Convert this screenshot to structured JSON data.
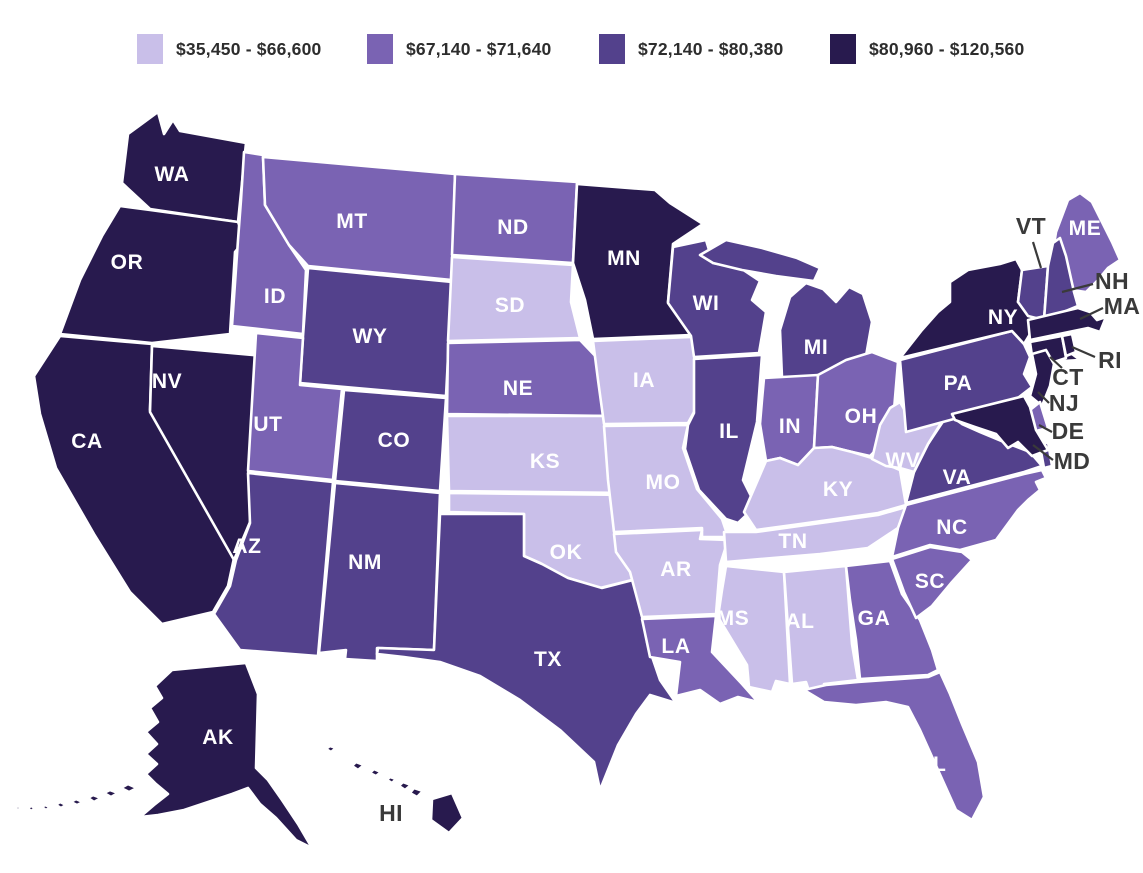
{
  "legend": {
    "items": [
      {
        "label": "$35,450 - $66,600",
        "color": "#c9bfe9"
      },
      {
        "label": "$67,140 - $71,640",
        "color": "#7a63b3"
      },
      {
        "label": "$72,140 - $80,380",
        "color": "#53418c"
      },
      {
        "label": "$80,960 - $120,560",
        "color": "#281a4e"
      }
    ]
  },
  "map": {
    "on_state_label_color": "#ffffff",
    "callout_label_color": "#3a3a3a",
    "states": [
      {
        "abbr": "WA",
        "category": 3,
        "range": "$80,960 - $120,560"
      },
      {
        "abbr": "OR",
        "category": 3,
        "range": "$80,960 - $120,560"
      },
      {
        "abbr": "CA",
        "category": 3,
        "range": "$80,960 - $120,560"
      },
      {
        "abbr": "NV",
        "category": 3,
        "range": "$80,960 - $120,560"
      },
      {
        "abbr": "ID",
        "category": 1,
        "range": "$67,140 - $71,640"
      },
      {
        "abbr": "MT",
        "category": 1,
        "range": "$67,140 - $71,640"
      },
      {
        "abbr": "WY",
        "category": 2,
        "range": "$72,140 - $80,380"
      },
      {
        "abbr": "UT",
        "category": 1,
        "range": "$67,140 - $71,640"
      },
      {
        "abbr": "CO",
        "category": 2,
        "range": "$72,140 - $80,380"
      },
      {
        "abbr": "AZ",
        "category": 2,
        "range": "$72,140 - $80,380"
      },
      {
        "abbr": "NM",
        "category": 2,
        "range": "$72,140 - $80,380"
      },
      {
        "abbr": "ND",
        "category": 1,
        "range": "$67,140 - $71,640"
      },
      {
        "abbr": "SD",
        "category": 0,
        "range": "$35,450 - $66,600"
      },
      {
        "abbr": "NE",
        "category": 1,
        "range": "$67,140 - $71,640"
      },
      {
        "abbr": "KS",
        "category": 0,
        "range": "$35,450 - $66,600"
      },
      {
        "abbr": "OK",
        "category": 0,
        "range": "$35,450 - $66,600"
      },
      {
        "abbr": "TX",
        "category": 2,
        "range": "$72,140 - $80,380"
      },
      {
        "abbr": "MN",
        "category": 3,
        "range": "$80,960 - $120,560"
      },
      {
        "abbr": "IA",
        "category": 0,
        "range": "$35,450 - $66,600"
      },
      {
        "abbr": "MO",
        "category": 0,
        "range": "$35,450 - $66,600"
      },
      {
        "abbr": "AR",
        "category": 0,
        "range": "$35,450 - $66,600"
      },
      {
        "abbr": "LA",
        "category": 1,
        "range": "$67,140 - $71,640"
      },
      {
        "abbr": "WI",
        "category": 2,
        "range": "$72,140 - $80,380"
      },
      {
        "abbr": "IL",
        "category": 2,
        "range": "$72,140 - $80,380"
      },
      {
        "abbr": "MI",
        "category": 2,
        "range": "$72,140 - $80,380"
      },
      {
        "abbr": "IN",
        "category": 1,
        "range": "$67,140 - $71,640"
      },
      {
        "abbr": "OH",
        "category": 1,
        "range": "$67,140 - $71,640"
      },
      {
        "abbr": "KY",
        "category": 0,
        "range": "$35,450 - $66,600"
      },
      {
        "abbr": "TN",
        "category": 0,
        "range": "$35,450 - $66,600"
      },
      {
        "abbr": "MS",
        "category": 0,
        "range": "$35,450 - $66,600"
      },
      {
        "abbr": "AL",
        "category": 0,
        "range": "$35,450 - $66,600"
      },
      {
        "abbr": "GA",
        "category": 1,
        "range": "$67,140 - $71,640"
      },
      {
        "abbr": "SC",
        "category": 1,
        "range": "$67,140 - $71,640"
      },
      {
        "abbr": "NC",
        "category": 1,
        "range": "$67,140 - $71,640"
      },
      {
        "abbr": "VA",
        "category": 2,
        "range": "$72,140 - $80,380"
      },
      {
        "abbr": "WV",
        "category": 0,
        "range": "$35,450 - $66,600"
      },
      {
        "abbr": "FL",
        "category": 1,
        "range": "$67,140 - $71,640"
      },
      {
        "abbr": "PA",
        "category": 2,
        "range": "$72,140 - $80,380"
      },
      {
        "abbr": "NY",
        "category": 3,
        "range": "$80,960 - $120,560"
      },
      {
        "abbr": "ME",
        "category": 1,
        "range": "$67,140 - $71,640"
      },
      {
        "abbr": "VT",
        "category": 2,
        "range": "$72,140 - $80,380"
      },
      {
        "abbr": "NH",
        "category": 2,
        "range": "$72,140 - $80,380"
      },
      {
        "abbr": "MA",
        "category": 3,
        "range": "$80,960 - $120,560"
      },
      {
        "abbr": "CT",
        "category": 3,
        "range": "$80,960 - $120,560"
      },
      {
        "abbr": "RI",
        "category": 3,
        "range": "$80,960 - $120,560"
      },
      {
        "abbr": "NJ",
        "category": 3,
        "range": "$80,960 - $120,560"
      },
      {
        "abbr": "DE",
        "category": 1,
        "range": "$67,140 - $71,640"
      },
      {
        "abbr": "MD",
        "category": 3,
        "range": "$80,960 - $120,560"
      },
      {
        "abbr": "AK",
        "category": 3,
        "range": "$80,960 - $120,560"
      },
      {
        "abbr": "HI",
        "category": 3,
        "range": "$80,960 - $120,560"
      }
    ]
  },
  "chart_data": {
    "type": "choropleth",
    "region": "United States",
    "bins": [
      {
        "range": "$35,450 - $66,600",
        "color": "#c9bfe9",
        "states": [
          "SD",
          "IA",
          "MO",
          "KS",
          "OK",
          "AR",
          "MS",
          "AL",
          "TN",
          "KY",
          "WV"
        ]
      },
      {
        "range": "$67,140 - $71,640",
        "color": "#7a63b3",
        "states": [
          "MT",
          "ID",
          "UT",
          "ND",
          "NE",
          "IN",
          "OH",
          "NC",
          "SC",
          "GA",
          "FL",
          "LA",
          "ME",
          "DE"
        ]
      },
      {
        "range": "$72,140 - $80,380",
        "color": "#53418c",
        "states": [
          "WY",
          "CO",
          "AZ",
          "NM",
          "TX",
          "IL",
          "WI",
          "MI",
          "PA",
          "VA",
          "VT",
          "NH"
        ]
      },
      {
        "range": "$80,960 - $120,560",
        "color": "#281a4e",
        "states": [
          "WA",
          "OR",
          "CA",
          "NV",
          "MN",
          "NY",
          "MA",
          "RI",
          "CT",
          "NJ",
          "MD",
          "AK",
          "HI"
        ]
      }
    ],
    "legend_position": "top"
  }
}
